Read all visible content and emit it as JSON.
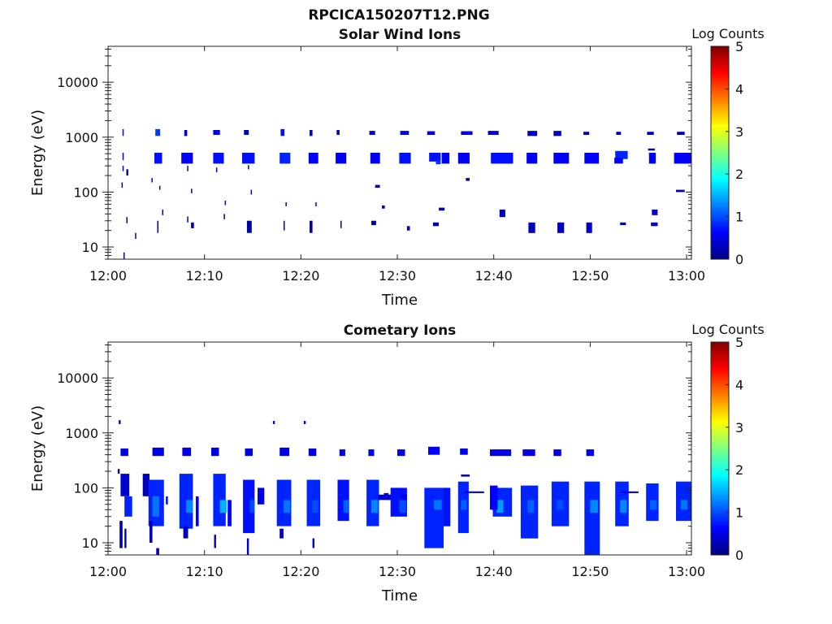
{
  "figure": {
    "title": "RPCICA150207T12.PNG"
  },
  "colors": {
    "frame": "#222222",
    "colormap": [
      "#00007f",
      "#0000ff",
      "#007fff",
      "#00ffff",
      "#7fff7f",
      "#ffff00",
      "#ff7f00",
      "#ff0000",
      "#7f0000"
    ]
  },
  "chart_data": [
    {
      "type": "heatmap",
      "title": "Solar Wind Ions",
      "xlabel": "Time",
      "ylabel": "Energy (eV)",
      "x_ticks": [
        "12:00",
        "12:10",
        "12:20",
        "12:30",
        "12:40",
        "12:50",
        "13:00"
      ],
      "xlim_minutes": [
        0,
        60.5
      ],
      "y_scale": "log",
      "ylim": [
        6,
        45000
      ],
      "y_ticks": [
        10,
        100,
        1000,
        10000
      ],
      "y_tick_labels": [
        "10",
        "100",
        "1000",
        "10000"
      ],
      "colorbar": {
        "label": "Log Counts",
        "range": [
          0,
          5
        ],
        "ticks": [
          "0",
          "1",
          "2",
          "3",
          "4",
          "5"
        ]
      },
      "cells": [
        [
          1.5,
          1.6,
          1050,
          1400,
          0.6
        ],
        [
          1.5,
          1.6,
          380,
          520,
          0.5
        ],
        [
          1.5,
          1.6,
          240,
          300,
          0.2
        ],
        [
          1.9,
          2.1,
          200,
          260,
          0.2
        ],
        [
          1.4,
          1.5,
          120,
          150,
          0.2
        ],
        [
          1.6,
          1.7,
          6,
          8,
          0.2
        ],
        [
          1.9,
          2.0,
          27,
          35,
          0.2
        ],
        [
          2.8,
          2.9,
          14,
          18,
          0.2
        ],
        [
          4.9,
          5.4,
          1050,
          1400,
          0.9
        ],
        [
          4.8,
          5.6,
          330,
          520,
          0.7
        ],
        [
          4.5,
          4.6,
          150,
          180,
          0.2
        ],
        [
          5.3,
          5.4,
          110,
          130,
          0.2
        ],
        [
          5.1,
          5.2,
          18,
          30,
          0.2
        ],
        [
          5.6,
          5.7,
          38,
          48,
          0.2
        ],
        [
          7.9,
          8.2,
          1050,
          1350,
          0.4
        ],
        [
          7.6,
          8.8,
          330,
          520,
          0.6
        ],
        [
          8.2,
          8.3,
          240,
          300,
          0.2
        ],
        [
          8.6,
          8.7,
          95,
          115,
          0.2
        ],
        [
          8.6,
          8.9,
          22,
          28,
          0.2
        ],
        [
          8.2,
          8.3,
          28,
          36,
          0.2
        ],
        [
          10.9,
          11.6,
          1100,
          1350,
          0.5
        ],
        [
          10.9,
          12.0,
          330,
          520,
          0.7
        ],
        [
          11.2,
          11.3,
          230,
          280,
          0.2
        ],
        [
          12.1,
          12.2,
          58,
          70,
          0.2
        ],
        [
          12.0,
          12.1,
          32,
          40,
          0.2
        ],
        [
          14.1,
          14.6,
          1100,
          1350,
          0.3
        ],
        [
          13.9,
          15.2,
          330,
          520,
          0.7
        ],
        [
          14.5,
          14.6,
          260,
          310,
          0.2
        ],
        [
          14.4,
          14.9,
          18,
          30,
          0.2
        ],
        [
          14.8,
          14.9,
          90,
          110,
          0.2
        ],
        [
          17.9,
          18.3,
          1050,
          1400,
          0.7
        ],
        [
          17.8,
          18.9,
          330,
          520,
          0.8
        ],
        [
          18.4,
          18.5,
          55,
          65,
          0.2
        ],
        [
          18.2,
          18.3,
          20,
          30,
          0.2
        ],
        [
          20.9,
          21.2,
          1050,
          1350,
          0.4
        ],
        [
          20.8,
          21.8,
          330,
          520,
          0.6
        ],
        [
          20.9,
          21.2,
          18,
          30,
          0.2
        ],
        [
          21.5,
          21.6,
          55,
          65,
          0.2
        ],
        [
          23.7,
          24.0,
          1100,
          1350,
          0.3
        ],
        [
          23.6,
          24.7,
          330,
          520,
          0.6
        ],
        [
          24.1,
          24.2,
          22,
          30,
          0.2
        ],
        [
          27.1,
          27.7,
          1100,
          1300,
          0.3
        ],
        [
          27.2,
          28.2,
          330,
          520,
          0.6
        ],
        [
          27.3,
          27.8,
          25,
          30,
          0.2
        ],
        [
          27.7,
          28.2,
          120,
          135,
          0.2
        ],
        [
          28.4,
          28.7,
          50,
          57,
          0.2
        ],
        [
          30.3,
          31.2,
          1100,
          1300,
          0.5
        ],
        [
          30.2,
          31.4,
          330,
          520,
          0.7
        ],
        [
          31.0,
          31.3,
          20,
          24,
          0.2
        ],
        [
          33.1,
          33.9,
          1100,
          1280,
          0.4
        ],
        [
          33.3,
          34.5,
          360,
          520,
          0.7
        ],
        [
          34.0,
          34.5,
          320,
          380,
          0.9
        ],
        [
          34.6,
          35.4,
          330,
          520,
          0.6
        ],
        [
          34.3,
          34.9,
          46,
          52,
          0.2
        ],
        [
          33.7,
          34.3,
          24,
          28,
          0.3
        ],
        [
          36.6,
          37.8,
          1100,
          1280,
          0.5
        ],
        [
          36.3,
          37.5,
          330,
          520,
          0.6
        ],
        [
          37.1,
          37.5,
          160,
          180,
          0.2
        ],
        [
          39.4,
          40.5,
          1100,
          1300,
          0.4
        ],
        [
          39.7,
          42.0,
          330,
          520,
          0.7
        ],
        [
          40.6,
          41.2,
          35,
          48,
          0.3
        ],
        [
          43.5,
          44.5,
          1050,
          1300,
          0.3
        ],
        [
          43.4,
          44.5,
          330,
          520,
          0.6
        ],
        [
          43.6,
          44.3,
          18,
          28,
          0.3
        ],
        [
          46.2,
          47.0,
          1050,
          1300,
          0.3
        ],
        [
          46.2,
          47.8,
          330,
          520,
          0.6
        ],
        [
          46.6,
          47.3,
          18,
          28,
          0.3
        ],
        [
          49.3,
          49.9,
          1100,
          1250,
          0.2
        ],
        [
          49.4,
          50.9,
          330,
          520,
          0.6
        ],
        [
          49.6,
          50.2,
          18,
          28,
          0.3
        ],
        [
          52.7,
          53.2,
          1100,
          1250,
          0.2
        ],
        [
          52.6,
          53.9,
          400,
          560,
          0.8
        ],
        [
          52.5,
          53.4,
          330,
          420,
          0.6
        ],
        [
          53.1,
          53.7,
          25,
          28,
          0.3
        ],
        [
          55.9,
          56.6,
          1100,
          1250,
          0.3
        ],
        [
          56.0,
          56.7,
          570,
          620,
          0.2
        ],
        [
          56.1,
          56.8,
          330,
          520,
          0.6
        ],
        [
          56.4,
          57.0,
          38,
          48,
          0.3
        ],
        [
          56.3,
          57.0,
          24,
          28,
          0.3
        ],
        [
          59.0,
          59.8,
          1100,
          1250,
          0.3
        ],
        [
          58.7,
          60.5,
          330,
          520,
          0.6
        ],
        [
          58.9,
          59.8,
          100,
          110,
          0.3
        ]
      ]
    },
    {
      "type": "heatmap",
      "title": "Cometary Ions",
      "xlabel": "Time",
      "ylabel": "Energy (eV)",
      "x_ticks": [
        "12:00",
        "12:10",
        "12:20",
        "12:30",
        "12:40",
        "12:50",
        "13:00"
      ],
      "xlim_minutes": [
        0,
        60.5
      ],
      "y_scale": "log",
      "ylim": [
        6,
        45000
      ],
      "y_ticks": [
        10,
        100,
        1000,
        10000
      ],
      "y_tick_labels": [
        "10",
        "100",
        "1000",
        "10000"
      ],
      "colorbar": {
        "label": "Log Counts",
        "range": [
          0,
          5
        ],
        "ticks": [
          "0",
          "1",
          "2",
          "3",
          "4",
          "5"
        ]
      },
      "cells": [
        [
          1.1,
          1.3,
          1450,
          1700,
          0.2
        ],
        [
          1.3,
          2.1,
          380,
          520,
          0.5
        ],
        [
          1.0,
          1.2,
          180,
          220,
          0.2
        ],
        [
          1.3,
          2.2,
          70,
          180,
          0.4
        ],
        [
          1.7,
          2.5,
          30,
          70,
          0.8
        ],
        [
          1.2,
          1.5,
          8,
          25,
          0.3
        ],
        [
          1.7,
          1.9,
          8,
          18,
          0.3
        ],
        [
          4.6,
          5.8,
          380,
          540,
          0.5
        ],
        [
          3.6,
          4.3,
          70,
          180,
          0.3
        ],
        [
          4.2,
          5.8,
          20,
          140,
          0.8
        ],
        [
          4.6,
          5.3,
          30,
          70,
          1.2
        ],
        [
          4.3,
          4.6,
          10,
          25,
          0.3
        ],
        [
          5.0,
          5.3,
          6,
          8,
          0.3
        ],
        [
          6.0,
          6.2,
          50,
          70,
          0.6
        ],
        [
          7.7,
          8.6,
          380,
          540,
          0.5
        ],
        [
          7.4,
          8.8,
          18,
          180,
          0.8
        ],
        [
          8.1,
          8.8,
          35,
          60,
          1.3
        ],
        [
          7.8,
          8.3,
          12,
          20,
          0.3
        ],
        [
          9.1,
          9.4,
          20,
          70,
          0.6
        ],
        [
          10.7,
          11.5,
          380,
          540,
          0.5
        ],
        [
          10.9,
          12.2,
          20,
          180,
          0.8
        ],
        [
          11.6,
          12.3,
          35,
          60,
          1.5
        ],
        [
          11.0,
          11.2,
          8,
          14,
          0.3
        ],
        [
          12.4,
          12.8,
          20,
          60,
          0.6
        ],
        [
          14.2,
          15.0,
          380,
          520,
          0.5
        ],
        [
          14.0,
          15.2,
          15,
          140,
          0.7
        ],
        [
          14.7,
          15.2,
          35,
          60,
          1.0
        ],
        [
          14.4,
          14.6,
          6,
          12,
          0.3
        ],
        [
          15.5,
          16.2,
          50,
          100,
          0.5
        ],
        [
          17.1,
          17.3,
          1450,
          1650,
          0.3
        ],
        [
          17.8,
          18.8,
          380,
          540,
          0.5
        ],
        [
          17.5,
          19.0,
          20,
          140,
          0.8
        ],
        [
          18.2,
          18.9,
          35,
          60,
          1.2
        ],
        [
          17.8,
          18.2,
          12,
          18,
          0.3
        ],
        [
          20.3,
          20.5,
          1450,
          1650,
          0.3
        ],
        [
          20.8,
          21.6,
          380,
          520,
          0.5
        ],
        [
          20.6,
          22.0,
          20,
          140,
          0.8
        ],
        [
          21.2,
          21.8,
          35,
          60,
          1.0
        ],
        [
          21.2,
          21.4,
          8,
          12,
          0.3
        ],
        [
          24.0,
          24.6,
          380,
          500,
          0.5
        ],
        [
          23.8,
          25.0,
          25,
          140,
          0.7
        ],
        [
          24.4,
          25.0,
          35,
          60,
          1.1
        ],
        [
          27.0,
          27.6,
          380,
          500,
          0.5
        ],
        [
          26.8,
          28.1,
          20,
          140,
          0.8
        ],
        [
          27.3,
          28.0,
          35,
          60,
          1.3
        ],
        [
          28.0,
          29.5,
          60,
          75,
          0.4
        ],
        [
          30.0,
          30.8,
          380,
          500,
          0.5
        ],
        [
          29.3,
          31.0,
          30,
          100,
          0.7
        ],
        [
          30.2,
          30.9,
          35,
          60,
          1.0
        ],
        [
          30.4,
          31.0,
          60,
          75,
          0.5
        ],
        [
          28.6,
          29.1,
          70,
          80,
          0.4
        ],
        [
          33.2,
          34.4,
          400,
          560,
          0.6
        ],
        [
          32.8,
          34.8,
          8,
          100,
          0.8
        ],
        [
          33.8,
          34.6,
          40,
          60,
          1.2
        ],
        [
          34.8,
          35.5,
          20,
          100,
          0.7
        ],
        [
          36.5,
          37.3,
          400,
          520,
          0.5
        ],
        [
          36.3,
          37.4,
          15,
          130,
          0.8
        ],
        [
          36.6,
          37.2,
          40,
          60,
          1.1
        ],
        [
          36.6,
          37.5,
          160,
          175,
          0.2
        ],
        [
          37.0,
          39.0,
          80,
          86,
          0.4
        ],
        [
          39.6,
          41.8,
          380,
          500,
          0.5
        ],
        [
          39.9,
          41.9,
          30,
          100,
          0.8
        ],
        [
          40.3,
          41.0,
          35,
          60,
          1.4
        ],
        [
          39.6,
          40.4,
          40,
          110,
          0.6
        ],
        [
          43.0,
          44.3,
          380,
          500,
          0.5
        ],
        [
          42.8,
          44.6,
          12,
          110,
          0.8
        ],
        [
          43.5,
          44.2,
          35,
          60,
          1.1
        ],
        [
          46.2,
          47.0,
          380,
          500,
          0.5
        ],
        [
          46.0,
          47.8,
          20,
          130,
          0.8
        ],
        [
          46.5,
          47.2,
          40,
          60,
          1.0
        ],
        [
          49.6,
          50.4,
          380,
          500,
          0.5
        ],
        [
          49.4,
          51.0,
          6,
          130,
          0.8
        ],
        [
          50.0,
          50.8,
          35,
          60,
          1.3
        ],
        [
          52.6,
          54.0,
          20,
          130,
          0.8
        ],
        [
          53.1,
          53.8,
          35,
          60,
          1.3
        ],
        [
          53.2,
          55.0,
          80,
          86,
          0.4
        ],
        [
          55.8,
          57.1,
          25,
          120,
          0.8
        ],
        [
          56.2,
          56.9,
          40,
          60,
          1.1
        ],
        [
          58.9,
          60.5,
          25,
          130,
          0.8
        ],
        [
          59.4,
          60.1,
          40,
          60,
          1.2
        ]
      ]
    }
  ]
}
